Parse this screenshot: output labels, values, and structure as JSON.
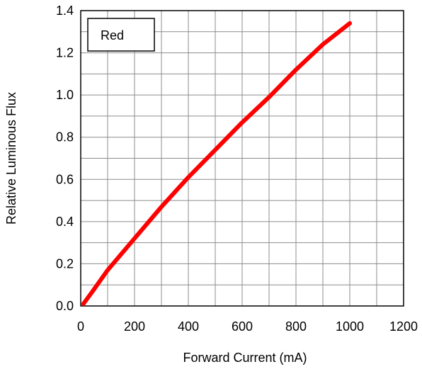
{
  "chart_data": {
    "type": "line",
    "xlabel": "Forward Current (mA)",
    "ylabel": "Relative Luminous Flux",
    "xlim": [
      0,
      1200
    ],
    "ylim": [
      0,
      1.4
    ],
    "x_ticks": [
      0,
      200,
      400,
      600,
      800,
      1000,
      1200
    ],
    "y_ticks": [
      0.0,
      0.2,
      0.4,
      0.6,
      0.8,
      1.0,
      1.2,
      1.4
    ],
    "x_tick_labels": [
      "0",
      "200",
      "400",
      "600",
      "800",
      "1000",
      "1200"
    ],
    "y_tick_labels": [
      "0.0",
      "0.2",
      "0.4",
      "0.6",
      "0.8",
      "1.0",
      "1.2",
      "1.4"
    ],
    "x_minor_step": 100,
    "y_minor_step": 0.1,
    "grid": true,
    "legend_position": "top-left",
    "series": [
      {
        "name": "Red",
        "color": "#ff0000",
        "x": [
          10,
          50,
          100,
          200,
          300,
          400,
          500,
          600,
          700,
          800,
          900,
          1000
        ],
        "y": [
          0.01,
          0.08,
          0.17,
          0.32,
          0.47,
          0.61,
          0.74,
          0.87,
          0.99,
          1.12,
          1.24,
          1.34
        ]
      }
    ]
  }
}
